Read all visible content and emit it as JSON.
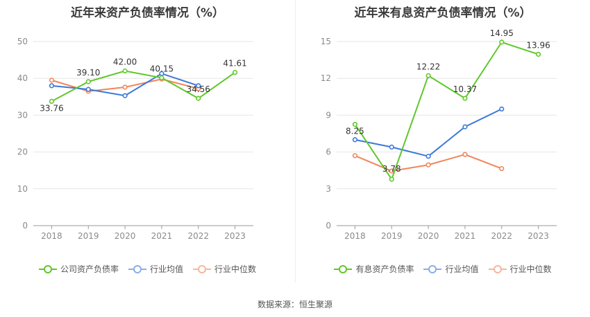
{
  "source": "数据来源：恒生聚源",
  "chart_data": [
    {
      "type": "line",
      "title": "近年来资产负债率情况（%）",
      "categories": [
        "2018",
        "2019",
        "2020",
        "2021",
        "2022",
        "2023"
      ],
      "ylim": [
        0,
        50
      ],
      "yticks": [
        0,
        10,
        20,
        30,
        40,
        50
      ],
      "grid": true,
      "legend_position": "bottom",
      "series": [
        {
          "name": "公司资产负债率",
          "color": "#5fc72a",
          "values": [
            33.76,
            39.1,
            42.0,
            40.15,
            34.56,
            41.61
          ],
          "labels": [
            "33.76",
            "39.10",
            "42.00",
            "40.15",
            "34.56",
            "41.61"
          ]
        },
        {
          "name": "行业均值",
          "color": "#3a78d8",
          "values": [
            38.0,
            37.0,
            35.3,
            41.3,
            38.0,
            null
          ]
        },
        {
          "name": "行业中位数",
          "color": "#f0855a",
          "values": [
            39.5,
            36.5,
            37.6,
            39.8,
            37.2,
            null
          ]
        }
      ]
    },
    {
      "type": "line",
      "title": "近年来有息资产负债率情况（%）",
      "categories": [
        "2018",
        "2019",
        "2020",
        "2021",
        "2022",
        "2023"
      ],
      "ylim": [
        0,
        15
      ],
      "yticks": [
        0,
        3,
        6,
        9,
        12,
        15
      ],
      "grid": true,
      "legend_position": "bottom",
      "series": [
        {
          "name": "有息资产负债率",
          "color": "#5fc72a",
          "values": [
            8.25,
            3.78,
            12.22,
            10.37,
            14.95,
            13.96
          ],
          "labels": [
            "8.25",
            "3.78",
            "12.22",
            "10.37",
            "14.95",
            "13.96"
          ]
        },
        {
          "name": "行业均值",
          "color": "#3a78d8",
          "values": [
            7.0,
            6.4,
            5.65,
            8.05,
            9.5,
            null
          ]
        },
        {
          "name": "行业中位数",
          "color": "#f0855a",
          "values": [
            5.7,
            4.45,
            4.95,
            5.8,
            4.65,
            null
          ]
        }
      ]
    }
  ]
}
